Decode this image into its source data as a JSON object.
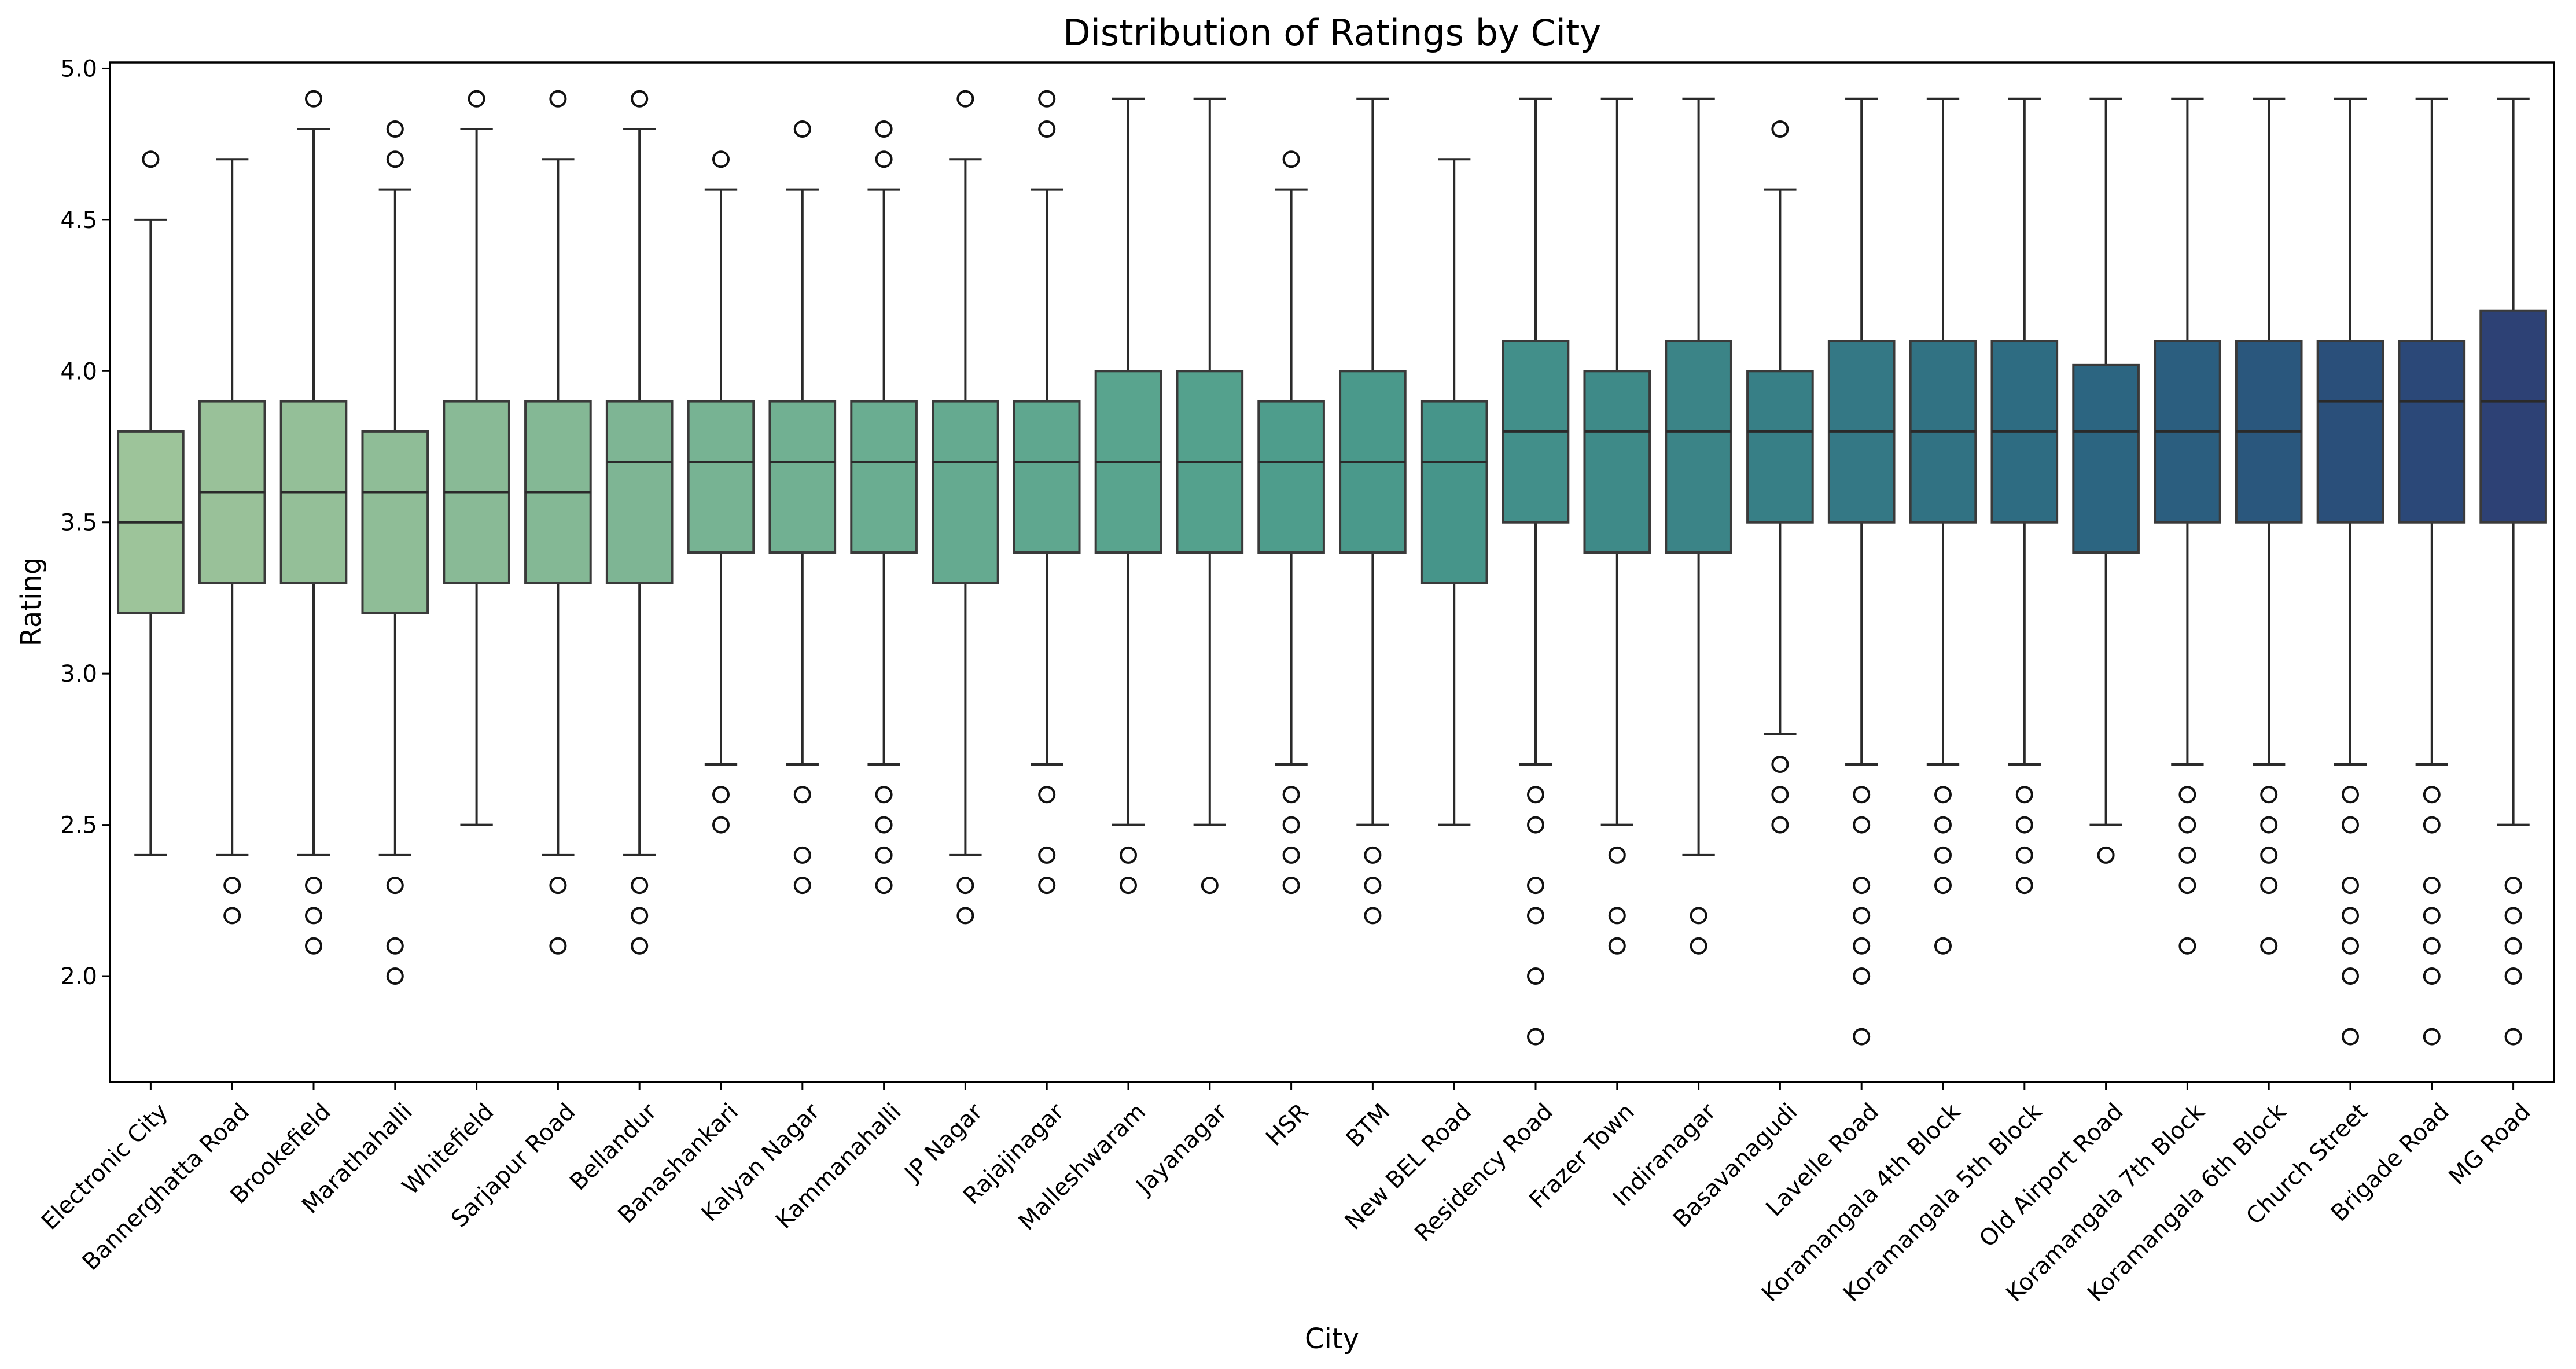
{
  "chart_data": {
    "type": "box",
    "title": "Distribution of Ratings by City",
    "xlabel": "City",
    "ylabel": "Rating",
    "ylim": [
      1.65,
      5.02
    ],
    "yticks": [
      "2.0",
      "2.5",
      "3.0",
      "3.5",
      "4.0",
      "4.5",
      "5.0"
    ],
    "grid": false,
    "legend": "none",
    "palette": "crest (light green to dark navy)",
    "colors": [
      "#9dc49a",
      "#99c199",
      "#94bf98",
      "#8fbd97",
      "#89ba96",
      "#84b895",
      "#7eb594",
      "#77b393",
      "#71b092",
      "#6aad91",
      "#65aa90",
      "#5fa78f",
      "#59a48e",
      "#54a18d",
      "#4e9d8c",
      "#4a998b",
      "#46958a",
      "#428f8a",
      "#3e8a88",
      "#3b8487",
      "#377f86",
      "#347885",
      "#317283",
      "#2e6c82",
      "#2c6581",
      "#2b5e7f",
      "#2a577d",
      "#2a4f7a",
      "#2b4878",
      "#2d4175",
      "#2f3a71",
      "#31336d",
      "#322d6a"
    ],
    "categories": [
      "Electronic City",
      "Bannerghatta Road",
      "Brookefield",
      "Marathahalli",
      "Whitefield",
      "Sarjapur Road",
      "Bellandur",
      "Banashankari",
      "Kalyan Nagar",
      "Kammanahalli",
      "JP Nagar",
      "Rajajinagar",
      "Malleshwaram",
      "Jayanagar",
      "HSR",
      "BTM",
      "New BEL Road",
      "Residency Road",
      "Frazer Town",
      "Indiranagar",
      "Basavanagudi",
      "Lavelle Road",
      "Koramangala 4th Block",
      "Koramangala 5th Block",
      "Old Airport Road",
      "Koramangala 7th Block",
      "Koramangala 6th Block",
      "Church Street",
      "Brigade Road",
      "MG Road"
    ],
    "boxes": [
      {
        "city": "Electronic City",
        "whislo": 2.4,
        "q1": 3.2,
        "med": 3.5,
        "q3": 3.8,
        "whishi": 4.5,
        "fliers": [
          4.7
        ]
      },
      {
        "city": "Bannerghatta Road",
        "whislo": 2.4,
        "q1": 3.3,
        "med": 3.6,
        "q3": 3.9,
        "whishi": 4.7,
        "fliers": [
          2.3,
          2.2
        ]
      },
      {
        "city": "Brookefield",
        "whislo": 2.4,
        "q1": 3.3,
        "med": 3.6,
        "q3": 3.9,
        "whishi": 4.8,
        "fliers": [
          4.9,
          2.3,
          2.2,
          2.1
        ]
      },
      {
        "city": "Marathahalli",
        "whislo": 2.4,
        "q1": 3.2,
        "med": 3.6,
        "q3": 3.8,
        "whishi": 4.6,
        "fliers": [
          4.8,
          4.7,
          2.3,
          2.1,
          2.0
        ]
      },
      {
        "city": "Whitefield",
        "whislo": 2.5,
        "q1": 3.3,
        "med": 3.6,
        "q3": 3.9,
        "whishi": 4.8,
        "fliers": [
          4.9
        ]
      },
      {
        "city": "Sarjapur Road",
        "whislo": 2.4,
        "q1": 3.3,
        "med": 3.6,
        "q3": 3.9,
        "whishi": 4.7,
        "fliers": [
          4.9,
          2.3,
          2.1
        ]
      },
      {
        "city": "Bellandur",
        "whislo": 2.4,
        "q1": 3.3,
        "med": 3.7,
        "q3": 3.9,
        "whishi": 4.8,
        "fliers": [
          4.9,
          2.3,
          2.2,
          2.1
        ]
      },
      {
        "city": "Banashankari",
        "whislo": 2.7,
        "q1": 3.4,
        "med": 3.7,
        "q3": 3.9,
        "whishi": 4.6,
        "fliers": [
          4.7,
          2.6,
          2.5
        ]
      },
      {
        "city": "Kalyan Nagar",
        "whislo": 2.7,
        "q1": 3.4,
        "med": 3.7,
        "q3": 3.9,
        "whishi": 4.6,
        "fliers": [
          4.8,
          2.6,
          2.4,
          2.3
        ]
      },
      {
        "city": "Kammanahalli",
        "whislo": 2.7,
        "q1": 3.4,
        "med": 3.7,
        "q3": 3.9,
        "whishi": 4.6,
        "fliers": [
          4.8,
          4.7,
          2.6,
          2.5,
          2.4,
          2.3
        ]
      },
      {
        "city": "JP Nagar",
        "whislo": 2.4,
        "q1": 3.3,
        "med": 3.7,
        "q3": 3.9,
        "whishi": 4.7,
        "fliers": [
          4.9,
          2.3,
          2.2
        ]
      },
      {
        "city": "Rajajinagar",
        "whislo": 2.7,
        "q1": 3.4,
        "med": 3.7,
        "q3": 3.9,
        "whishi": 4.6,
        "fliers": [
          4.9,
          4.8,
          2.6,
          2.4,
          2.3
        ]
      },
      {
        "city": "Malleshwaram",
        "whislo": 2.5,
        "q1": 3.4,
        "med": 3.7,
        "q3": 4.0,
        "whishi": 4.9,
        "fliers": [
          2.4,
          2.3
        ]
      },
      {
        "city": "Jayanagar",
        "whislo": 2.5,
        "q1": 3.4,
        "med": 3.7,
        "q3": 4.0,
        "whishi": 4.9,
        "fliers": [
          2.3
        ]
      },
      {
        "city": "HSR",
        "whislo": 2.7,
        "q1": 3.4,
        "med": 3.7,
        "q3": 3.9,
        "whishi": 4.6,
        "fliers": [
          4.7,
          2.6,
          2.5,
          2.4,
          2.3
        ]
      },
      {
        "city": "BTM",
        "whislo": 2.5,
        "q1": 3.4,
        "med": 3.7,
        "q3": 4.0,
        "whishi": 4.9,
        "fliers": [
          2.4,
          2.3,
          2.2
        ]
      },
      {
        "city": "New BEL Road",
        "whislo": 2.5,
        "q1": 3.3,
        "med": 3.7,
        "q3": 3.9,
        "whishi": 4.7,
        "fliers": []
      },
      {
        "city": "Residency Road",
        "whislo": 2.7,
        "q1": 3.5,
        "med": 3.8,
        "q3": 4.1,
        "whishi": 4.9,
        "fliers": [
          2.6,
          2.5,
          2.3,
          2.2,
          2.0,
          1.8
        ]
      },
      {
        "city": "Frazer Town",
        "whislo": 2.5,
        "q1": 3.4,
        "med": 3.8,
        "q3": 4.0,
        "whishi": 4.9,
        "fliers": [
          2.4,
          2.2,
          2.1
        ]
      },
      {
        "city": "Indiranagar",
        "whislo": 2.4,
        "q1": 3.4,
        "med": 3.8,
        "q3": 4.1,
        "whishi": 4.9,
        "fliers": [
          2.2,
          2.1
        ]
      },
      {
        "city": "Basavanagudi",
        "whislo": 2.8,
        "q1": 3.5,
        "med": 3.8,
        "q3": 4.0,
        "whishi": 4.6,
        "fliers": [
          4.8,
          2.7,
          2.6,
          2.5
        ]
      },
      {
        "city": "Lavelle Road",
        "whislo": 2.7,
        "q1": 3.5,
        "med": 3.8,
        "q3": 4.1,
        "whishi": 4.9,
        "fliers": [
          2.6,
          2.5,
          2.3,
          2.2,
          2.1,
          2.0,
          1.8
        ]
      },
      {
        "city": "Koramangala 4th Block",
        "whislo": 2.7,
        "q1": 3.5,
        "med": 3.8,
        "q3": 4.1,
        "whishi": 4.9,
        "fliers": [
          2.6,
          2.5,
          2.4,
          2.3,
          2.1
        ]
      },
      {
        "city": "Koramangala 5th Block",
        "whislo": 2.7,
        "q1": 3.5,
        "med": 3.8,
        "q3": 4.1,
        "whishi": 4.9,
        "fliers": [
          2.6,
          2.5,
          2.4,
          2.3
        ]
      },
      {
        "city": "Old Airport Road",
        "whislo": 2.5,
        "q1": 3.4,
        "med": 3.8,
        "q3": 4.02,
        "whishi": 4.9,
        "fliers": [
          2.4
        ]
      },
      {
        "city": "Koramangala 7th Block",
        "whislo": 2.7,
        "q1": 3.5,
        "med": 3.8,
        "q3": 4.1,
        "whishi": 4.9,
        "fliers": [
          2.6,
          2.5,
          2.4,
          2.3,
          2.1
        ]
      },
      {
        "city": "Koramangala 6th Block",
        "whislo": 2.7,
        "q1": 3.5,
        "med": 3.8,
        "q3": 4.1,
        "whishi": 4.9,
        "fliers": [
          2.6,
          2.5,
          2.4,
          2.3,
          2.1
        ]
      },
      {
        "city": "Church Street",
        "whislo": 2.7,
        "q1": 3.5,
        "med": 3.9,
        "q3": 4.1,
        "whishi": 4.9,
        "fliers": [
          2.6,
          2.5,
          2.3,
          2.2,
          2.1,
          2.0,
          1.8
        ]
      },
      {
        "city": "Brigade Road",
        "whislo": 2.7,
        "q1": 3.5,
        "med": 3.9,
        "q3": 4.1,
        "whishi": 4.9,
        "fliers": [
          2.6,
          2.5,
          2.3,
          2.2,
          2.1,
          2.0,
          1.8
        ]
      },
      {
        "city": "MG Road",
        "whislo": 2.5,
        "q1": 3.5,
        "med": 3.9,
        "q3": 4.2,
        "whishi": 4.9,
        "fliers": [
          2.3,
          2.2,
          2.1,
          2.0,
          1.8
        ]
      }
    ]
  }
}
